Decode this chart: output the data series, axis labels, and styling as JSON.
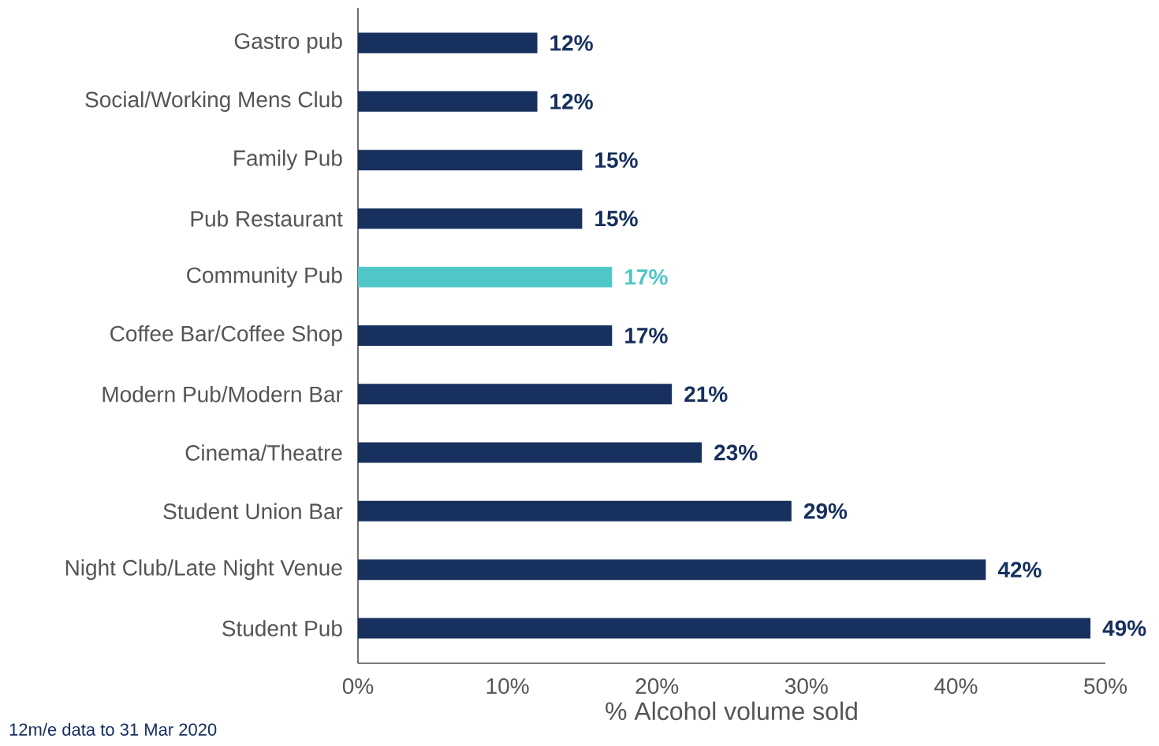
{
  "chart_data": {
    "type": "bar",
    "orientation": "horizontal",
    "xlabel": "% Alcohol volume sold",
    "categories": [
      "Gastro pub",
      "Social/Working Mens Club",
      "Family Pub",
      "Pub Restaurant",
      "Community Pub",
      "Coffee Bar/Coffee Shop",
      "Modern Pub/Modern Bar",
      "Cinema/Theatre",
      "Student Union Bar",
      "Night Club/Late Night Venue",
      "Student Pub"
    ],
    "values": [
      12,
      12,
      15,
      15,
      17,
      17,
      21,
      23,
      29,
      42,
      49
    ],
    "value_labels": [
      "12%",
      "12%",
      "15%",
      "15%",
      "17%",
      "17%",
      "21%",
      "23%",
      "29%",
      "42%",
      "49%"
    ],
    "colors": [
      "#17305e",
      "#17305e",
      "#17305e",
      "#17305e",
      "#4fc6c8",
      "#17305e",
      "#17305e",
      "#17305e",
      "#17305e",
      "#17305e",
      "#17305e"
    ],
    "xlim": [
      0,
      50
    ],
    "xticks": [
      {
        "value": 0,
        "label": "0%"
      },
      {
        "value": 10,
        "label": "10%"
      },
      {
        "value": 20,
        "label": "20%"
      },
      {
        "value": 30,
        "label": "30%"
      },
      {
        "value": 40,
        "label": "40%"
      },
      {
        "value": 50,
        "label": "50%"
      }
    ],
    "grid": false,
    "annotations": [
      "12m/e data to 31 Mar 2020"
    ]
  }
}
